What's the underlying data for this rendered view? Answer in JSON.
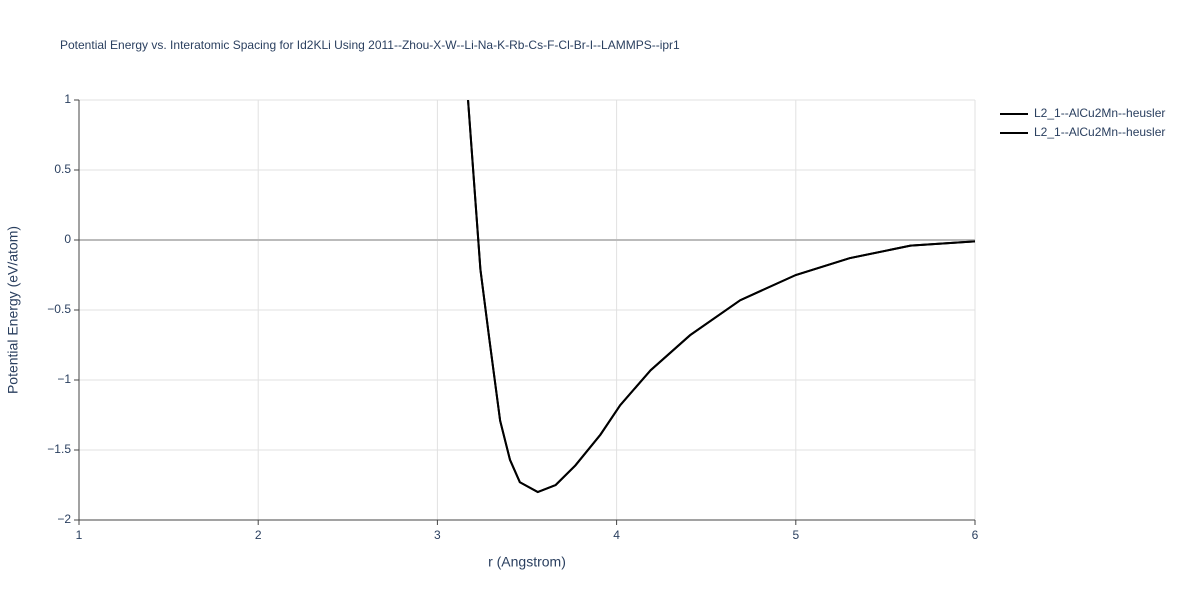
{
  "chart_data": {
    "type": "line",
    "title": "Potential Energy vs. Interatomic Spacing for Id2KLi Using 2011--Zhou-X-W--Li-Na-K-Rb-Cs-F-Cl-Br-I--LAMMPS--ipr1",
    "x_label": "r (Angstrom)",
    "y_label": "Potential Energy (eV/atom)",
    "x": [
      3.171,
      3.24,
      3.29,
      3.35,
      3.405,
      3.46,
      3.56,
      3.66,
      3.77,
      3.91,
      4.02,
      4.19,
      4.41,
      4.69,
      5.0,
      5.3,
      5.64,
      6.0
    ],
    "series": [
      {
        "name": "L2_1--AlCu2Mn--heusler",
        "color": "#000000",
        "values": [
          1,
          -0.21,
          -0.71,
          -1.29,
          -1.57,
          -1.73,
          -1.8,
          -1.75,
          -1.61,
          -1.39,
          -1.18,
          -0.93,
          -0.68,
          -0.43,
          -0.25,
          -0.13,
          -0.04,
          -0.01
        ]
      },
      {
        "name": "L2_1--AlCu2Mn--heusler",
        "color": "#000000",
        "values": [
          1,
          -0.21,
          -0.71,
          -1.29,
          -1.57,
          -1.73,
          -1.8,
          -1.75,
          -1.61,
          -1.39,
          -1.18,
          -0.93,
          -0.68,
          -0.43,
          -0.25,
          -0.13,
          -0.04,
          -0.01
        ]
      }
    ],
    "xlim": [
      1,
      6
    ],
    "xticks": [
      1,
      2,
      3,
      4,
      5,
      6
    ],
    "ylim": [
      -2,
      1
    ],
    "yticks": [
      {
        "value": -2,
        "label": "−2"
      },
      {
        "value": -1.5,
        "label": "−1.5"
      },
      {
        "value": -1,
        "label": "−1"
      },
      {
        "value": -0.5,
        "label": "−0.5"
      },
      0,
      0.5,
      1
    ],
    "grid": true,
    "legend": "top-right"
  }
}
